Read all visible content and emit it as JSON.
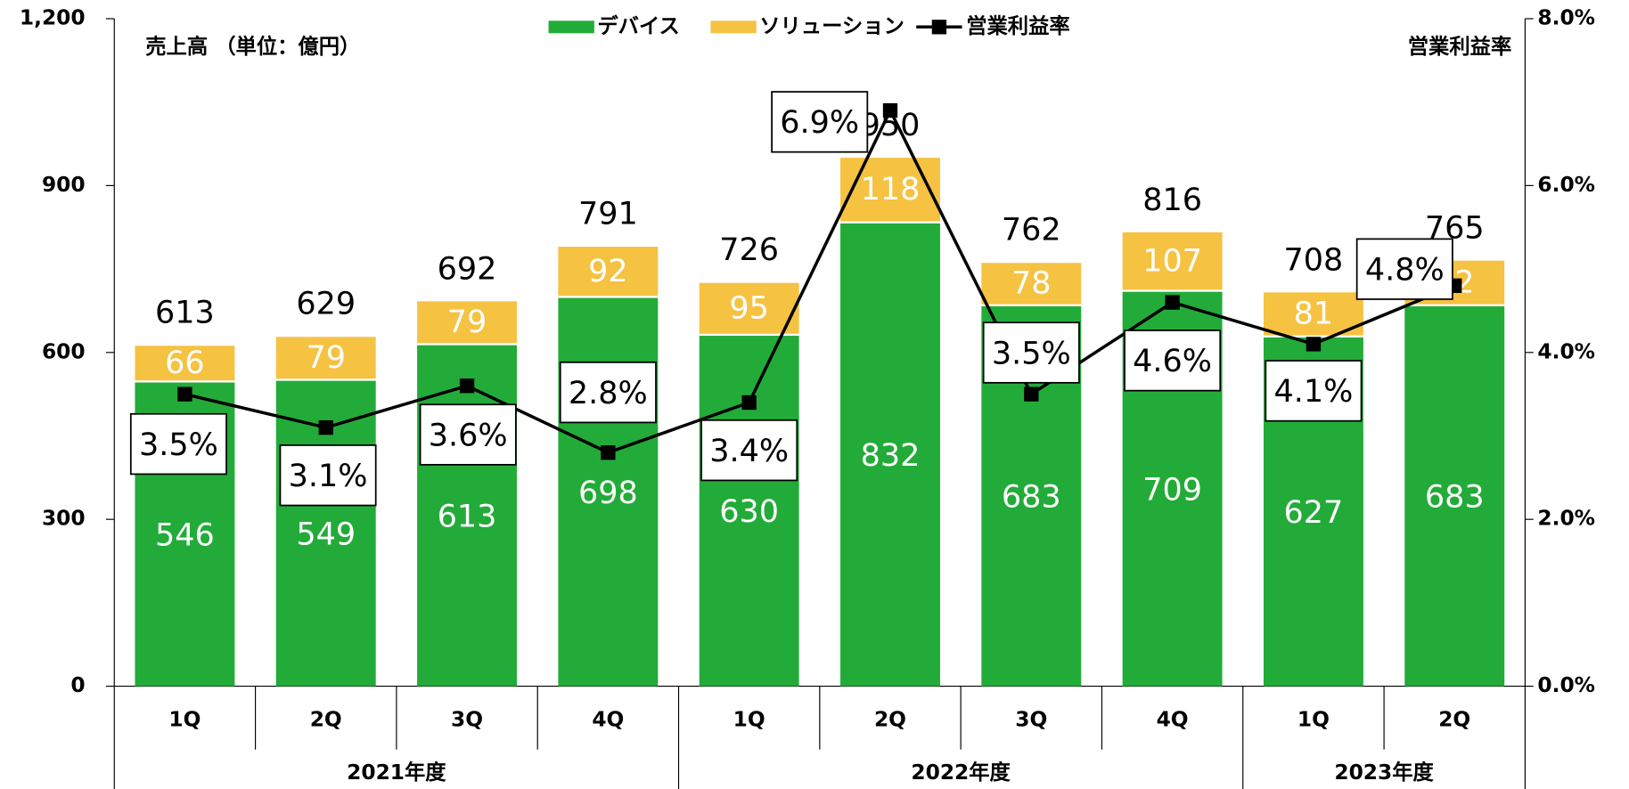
{
  "chart_data": {
    "type": "bar",
    "annotations": [
      "売上高 （単位：億円）",
      "営業利益率"
    ],
    "categories": [
      "1Q",
      "2Q",
      "3Q",
      "4Q",
      "1Q",
      "2Q",
      "3Q",
      "4Q",
      "1Q",
      "2Q"
    ],
    "groups": [
      "2021年度",
      "2021年度",
      "2021年度",
      "2021年度",
      "2022年度",
      "2022年度",
      "2022年度",
      "2022年度",
      "2023年度",
      "2023年度"
    ],
    "series": [
      {
        "name": "デバイス",
        "color": "#22ab38",
        "values": [
          546,
          549,
          613,
          698,
          630,
          832,
          683,
          709,
          627,
          683
        ]
      },
      {
        "name": "ソリューション",
        "color": "#f5c242",
        "values": [
          66,
          79,
          79,
          92,
          95,
          118,
          78,
          107,
          81,
          82
        ]
      },
      {
        "name": "営業利益率",
        "color": "#000000",
        "type": "line",
        "axis": "y2",
        "values": [
          3.5,
          3.1,
          3.6,
          2.8,
          3.4,
          6.9,
          3.5,
          4.6,
          4.1,
          4.8
        ],
        "value_labels": [
          "3.5%",
          "3.1%",
          "3.6%",
          "2.8%",
          "3.4%",
          "6.9%",
          "3.5%",
          "4.6%",
          "4.1%",
          "4.8%"
        ]
      }
    ],
    "totals": [
      613,
      629,
      692,
      791,
      726,
      950,
      762,
      816,
      708,
      765
    ],
    "ylim": [
      0,
      1200
    ],
    "yticks": [
      0,
      300,
      600,
      900,
      {
        "value": 1200,
        "label": "1,200"
      }
    ],
    "y2lim": [
      0,
      8
    ],
    "y2ticks": [
      {
        "value": 0,
        "label": "0.0%"
      },
      {
        "value": 2,
        "label": "2.0%"
      },
      {
        "value": 4,
        "label": "4.0%"
      },
      {
        "value": 6,
        "label": "6.0%"
      },
      {
        "value": 8,
        "label": "8.0%"
      }
    ]
  }
}
